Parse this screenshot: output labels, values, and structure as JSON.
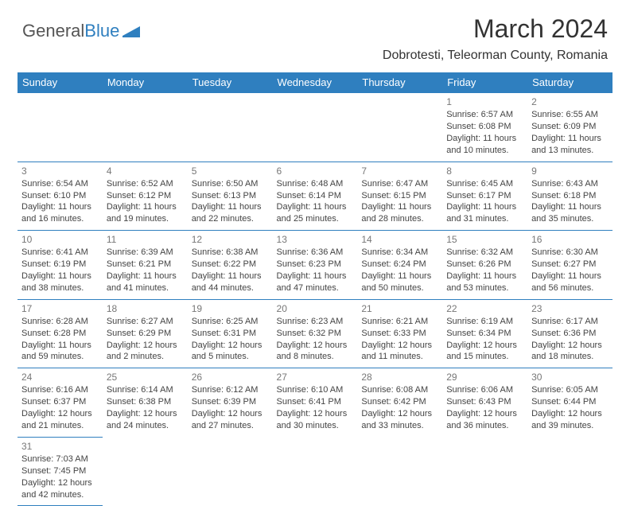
{
  "logo": {
    "text1": "General",
    "text2": "Blue"
  },
  "title": "March 2024",
  "location": "Dobrotesti, Teleorman County, Romania",
  "headers": [
    "Sunday",
    "Monday",
    "Tuesday",
    "Wednesday",
    "Thursday",
    "Friday",
    "Saturday"
  ],
  "colors": {
    "header_bg": "#2f7fbf",
    "header_text": "#ffffff",
    "border": "#2f7fbf",
    "body_text": "#444444",
    "daynum": "#777777",
    "background": "#ffffff"
  },
  "fonts": {
    "title_size": 32,
    "location_size": 16,
    "header_size": 13,
    "cell_size": 11,
    "daynum_size": 12
  },
  "weeks": [
    [
      null,
      null,
      null,
      null,
      null,
      {
        "n": "1",
        "sr": "6:57 AM",
        "ss": "6:08 PM",
        "dl": "11 hours and 10 minutes."
      },
      {
        "n": "2",
        "sr": "6:55 AM",
        "ss": "6:09 PM",
        "dl": "11 hours and 13 minutes."
      }
    ],
    [
      {
        "n": "3",
        "sr": "6:54 AM",
        "ss": "6:10 PM",
        "dl": "11 hours and 16 minutes."
      },
      {
        "n": "4",
        "sr": "6:52 AM",
        "ss": "6:12 PM",
        "dl": "11 hours and 19 minutes."
      },
      {
        "n": "5",
        "sr": "6:50 AM",
        "ss": "6:13 PM",
        "dl": "11 hours and 22 minutes."
      },
      {
        "n": "6",
        "sr": "6:48 AM",
        "ss": "6:14 PM",
        "dl": "11 hours and 25 minutes."
      },
      {
        "n": "7",
        "sr": "6:47 AM",
        "ss": "6:15 PM",
        "dl": "11 hours and 28 minutes."
      },
      {
        "n": "8",
        "sr": "6:45 AM",
        "ss": "6:17 PM",
        "dl": "11 hours and 31 minutes."
      },
      {
        "n": "9",
        "sr": "6:43 AM",
        "ss": "6:18 PM",
        "dl": "11 hours and 35 minutes."
      }
    ],
    [
      {
        "n": "10",
        "sr": "6:41 AM",
        "ss": "6:19 PM",
        "dl": "11 hours and 38 minutes."
      },
      {
        "n": "11",
        "sr": "6:39 AM",
        "ss": "6:21 PM",
        "dl": "11 hours and 41 minutes."
      },
      {
        "n": "12",
        "sr": "6:38 AM",
        "ss": "6:22 PM",
        "dl": "11 hours and 44 minutes."
      },
      {
        "n": "13",
        "sr": "6:36 AM",
        "ss": "6:23 PM",
        "dl": "11 hours and 47 minutes."
      },
      {
        "n": "14",
        "sr": "6:34 AM",
        "ss": "6:24 PM",
        "dl": "11 hours and 50 minutes."
      },
      {
        "n": "15",
        "sr": "6:32 AM",
        "ss": "6:26 PM",
        "dl": "11 hours and 53 minutes."
      },
      {
        "n": "16",
        "sr": "6:30 AM",
        "ss": "6:27 PM",
        "dl": "11 hours and 56 minutes."
      }
    ],
    [
      {
        "n": "17",
        "sr": "6:28 AM",
        "ss": "6:28 PM",
        "dl": "11 hours and 59 minutes."
      },
      {
        "n": "18",
        "sr": "6:27 AM",
        "ss": "6:29 PM",
        "dl": "12 hours and 2 minutes."
      },
      {
        "n": "19",
        "sr": "6:25 AM",
        "ss": "6:31 PM",
        "dl": "12 hours and 5 minutes."
      },
      {
        "n": "20",
        "sr": "6:23 AM",
        "ss": "6:32 PM",
        "dl": "12 hours and 8 minutes."
      },
      {
        "n": "21",
        "sr": "6:21 AM",
        "ss": "6:33 PM",
        "dl": "12 hours and 11 minutes."
      },
      {
        "n": "22",
        "sr": "6:19 AM",
        "ss": "6:34 PM",
        "dl": "12 hours and 15 minutes."
      },
      {
        "n": "23",
        "sr": "6:17 AM",
        "ss": "6:36 PM",
        "dl": "12 hours and 18 minutes."
      }
    ],
    [
      {
        "n": "24",
        "sr": "6:16 AM",
        "ss": "6:37 PM",
        "dl": "12 hours and 21 minutes."
      },
      {
        "n": "25",
        "sr": "6:14 AM",
        "ss": "6:38 PM",
        "dl": "12 hours and 24 minutes."
      },
      {
        "n": "26",
        "sr": "6:12 AM",
        "ss": "6:39 PM",
        "dl": "12 hours and 27 minutes."
      },
      {
        "n": "27",
        "sr": "6:10 AM",
        "ss": "6:41 PM",
        "dl": "12 hours and 30 minutes."
      },
      {
        "n": "28",
        "sr": "6:08 AM",
        "ss": "6:42 PM",
        "dl": "12 hours and 33 minutes."
      },
      {
        "n": "29",
        "sr": "6:06 AM",
        "ss": "6:43 PM",
        "dl": "12 hours and 36 minutes."
      },
      {
        "n": "30",
        "sr": "6:05 AM",
        "ss": "6:44 PM",
        "dl": "12 hours and 39 minutes."
      }
    ],
    [
      {
        "n": "31",
        "sr": "7:03 AM",
        "ss": "7:45 PM",
        "dl": "12 hours and 42 minutes."
      },
      null,
      null,
      null,
      null,
      null,
      null
    ]
  ],
  "labels": {
    "sunrise": "Sunrise:",
    "sunset": "Sunset:",
    "daylight": "Daylight:"
  }
}
